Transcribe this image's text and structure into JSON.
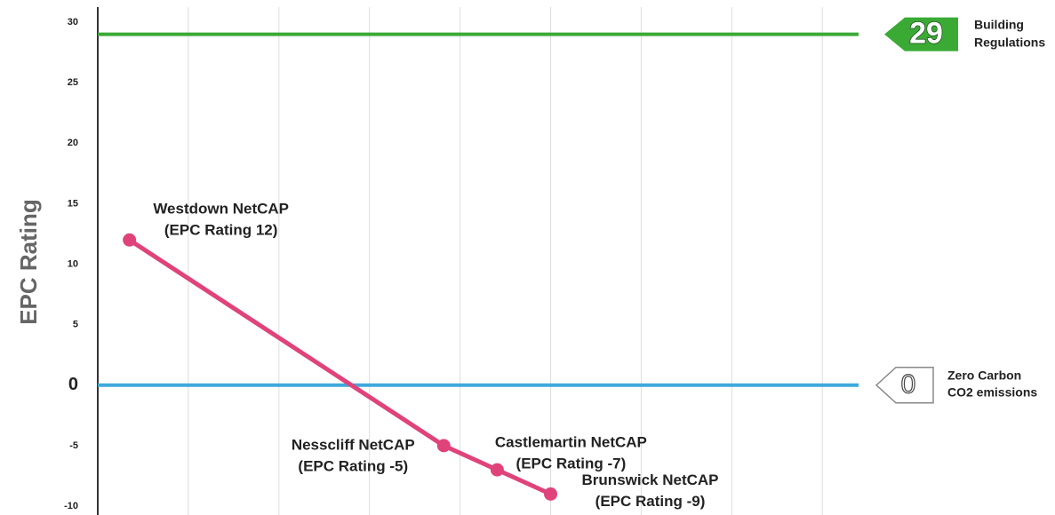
{
  "chart_data": {
    "type": "line",
    "y_label": "EPC Rating",
    "x": [
      0.35,
      3.82,
      4.41,
      5.0
    ],
    "values": [
      12,
      -5,
      -7,
      -9
    ],
    "point_labels": [
      "Westdown NetCAP",
      "Nesscliff NetCAP",
      "Castlemartin NetCAP",
      "Brunswick NetCAP"
    ],
    "value_labels": [
      "(EPC Rating 12)",
      "(EPC Rating -5)",
      "(EPC Rating -7)",
      "(EPC Rating -9)"
    ],
    "color": "#e0437a",
    "xlim": [
      0,
      8.4
    ],
    "xticks": [
      1,
      2,
      3,
      4,
      5,
      6,
      7,
      8
    ],
    "ylim": [
      -10,
      30
    ],
    "yticks": [
      -10,
      -5,
      0,
      5,
      10,
      15,
      20,
      25,
      30
    ],
    "grid": true,
    "reference_lines": [
      {
        "value": 29,
        "text": [
          "Building",
          "Regulations"
        ],
        "color": "#3aaa35"
      },
      {
        "value": 0,
        "text": [
          "Zero Carbon",
          "CO2 emissions"
        ],
        "color": "#3fa9dc"
      }
    ]
  }
}
